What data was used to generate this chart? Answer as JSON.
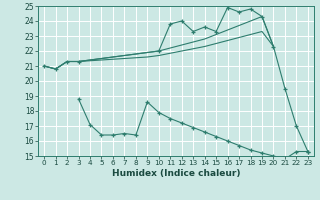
{
  "xlabel": "Humidex (Indice chaleur)",
  "bg_color": "#cce8e4",
  "grid_color": "#b8d8d4",
  "line_color": "#2e7d6e",
  "xlim_min": -0.5,
  "xlim_max": 23.5,
  "ylim_min": 15,
  "ylim_max": 25,
  "xticks": [
    0,
    1,
    2,
    3,
    4,
    5,
    6,
    7,
    8,
    9,
    10,
    11,
    12,
    13,
    14,
    15,
    16,
    17,
    18,
    19,
    20,
    21,
    22,
    23
  ],
  "yticks": [
    15,
    16,
    17,
    18,
    19,
    20,
    21,
    22,
    23,
    24,
    25
  ],
  "line1_x": [
    0,
    1,
    2,
    3,
    10,
    11,
    12,
    13,
    14,
    15,
    16,
    17,
    18,
    19,
    20,
    21,
    22,
    23
  ],
  "line1_y": [
    21.0,
    20.8,
    21.3,
    21.3,
    22.0,
    23.8,
    24.0,
    23.3,
    23.6,
    23.3,
    24.9,
    24.6,
    24.8,
    24.3,
    22.3,
    19.5,
    17.0,
    15.3
  ],
  "line2_x": [
    0,
    1,
    2,
    3,
    4,
    5,
    6,
    7,
    8,
    9,
    10,
    11,
    12,
    13,
    14,
    15,
    16,
    17,
    18,
    19,
    20
  ],
  "line2_y": [
    21.0,
    20.8,
    21.3,
    21.3,
    21.4,
    21.5,
    21.6,
    21.7,
    21.8,
    21.9,
    22.0,
    22.2,
    22.4,
    22.6,
    22.8,
    23.1,
    23.4,
    23.7,
    24.0,
    24.3,
    22.3
  ],
  "line3_x": [
    0,
    1,
    2,
    3,
    4,
    5,
    6,
    7,
    8,
    9,
    10,
    11,
    12,
    13,
    14,
    15,
    16,
    17,
    18,
    19,
    20
  ],
  "line3_y": [
    21.0,
    20.8,
    21.3,
    21.3,
    21.35,
    21.4,
    21.45,
    21.5,
    21.55,
    21.6,
    21.7,
    21.85,
    22.0,
    22.15,
    22.3,
    22.5,
    22.7,
    22.9,
    23.1,
    23.3,
    22.3
  ],
  "line4_x": [
    3,
    4,
    5,
    6,
    7,
    8,
    9,
    10,
    11,
    12,
    13,
    14,
    15,
    16,
    17,
    18,
    19,
    20,
    21,
    22,
    23
  ],
  "line4_y": [
    18.8,
    17.1,
    16.4,
    16.4,
    16.5,
    16.4,
    18.6,
    17.9,
    17.5,
    17.2,
    16.9,
    16.6,
    16.3,
    16.0,
    15.7,
    15.4,
    15.2,
    15.0,
    14.8,
    15.3,
    15.3
  ]
}
